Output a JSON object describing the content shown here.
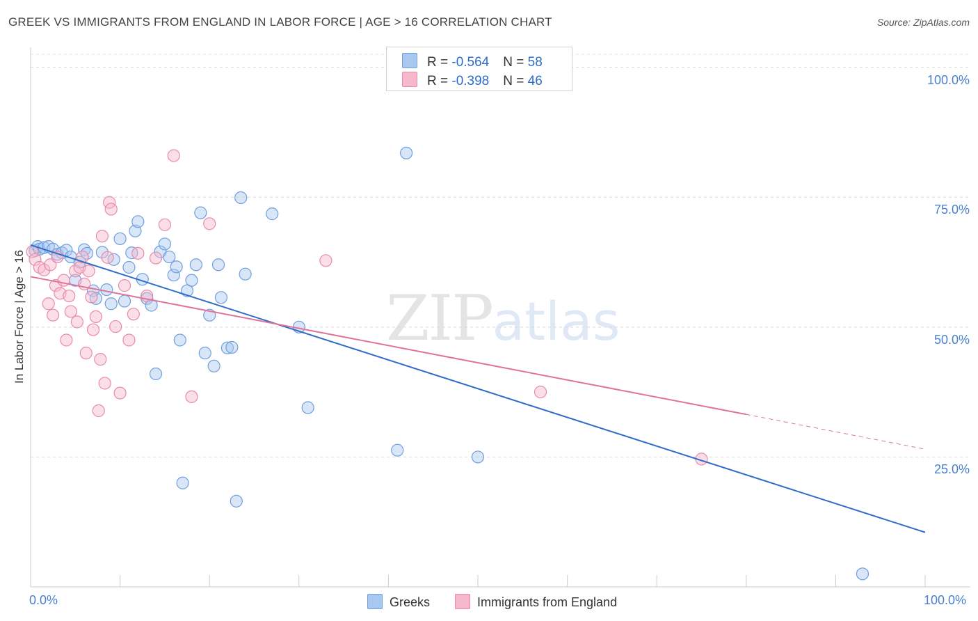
{
  "title": "GREEK VS IMMIGRANTS FROM ENGLAND IN LABOR FORCE | AGE > 16 CORRELATION CHART",
  "source": "Source: ZipAtlas.com",
  "watermark": {
    "zip": "ZIP",
    "atlas": "atlas"
  },
  "legend": {
    "r_label": "R = ",
    "n_label": "N = ",
    "series": [
      {
        "r": "-0.564",
        "n": "58",
        "color": "#a9c8f0",
        "border": "#6f9fdc"
      },
      {
        "r": "-0.398",
        "n": "46",
        "color": "#f7b8cc",
        "border": "#e98aa9"
      }
    ]
  },
  "bottom_legend": [
    "Greeks",
    "Immigrants from England"
  ],
  "chart_data": {
    "type": "scatter",
    "title": "GREEK VS IMMIGRANTS FROM ENGLAND IN LABOR FORCE | AGE > 16 CORRELATION CHART",
    "xlabel": "",
    "ylabel": "In Labor Force | Age > 16",
    "xlim": [
      0,
      100
    ],
    "ylim": [
      0,
      102.5
    ],
    "x_tick_labels": [
      "0.0%",
      "100.0%"
    ],
    "y_ticks": [
      25,
      50,
      75,
      100
    ],
    "y_tick_labels": [
      "25.0%",
      "50.0%",
      "75.0%",
      "100.0%"
    ],
    "grid": "horizontal dashed",
    "series": [
      {
        "name": "Greeks",
        "color": "#6f9fdc",
        "fill": "#a9c8f0",
        "points": [
          [
            0.5,
            64.7
          ],
          [
            0.8,
            65.5
          ],
          [
            1.0,
            65.0
          ],
          [
            1.5,
            65.3
          ],
          [
            2.0,
            65.5
          ],
          [
            2.5,
            65.0
          ],
          [
            3.0,
            64.0
          ],
          [
            3.5,
            64.3
          ],
          [
            4.0,
            64.8
          ],
          [
            4.5,
            63.5
          ],
          [
            5.0,
            59.0
          ],
          [
            5.5,
            62.5
          ],
          [
            6.0,
            64.9
          ],
          [
            6.3,
            64.2
          ],
          [
            7.0,
            57.0
          ],
          [
            7.3,
            55.5
          ],
          [
            8.0,
            64.4
          ],
          [
            8.5,
            57.2
          ],
          [
            9.0,
            54.5
          ],
          [
            9.3,
            63.0
          ],
          [
            10.0,
            67.0
          ],
          [
            10.5,
            55.0
          ],
          [
            11.0,
            61.5
          ],
          [
            11.3,
            64.3
          ],
          [
            11.7,
            68.5
          ],
          [
            12.0,
            70.3
          ],
          [
            12.5,
            59.2
          ],
          [
            13.0,
            55.5
          ],
          [
            13.5,
            54.2
          ],
          [
            14.0,
            41.0
          ],
          [
            14.5,
            64.5
          ],
          [
            15.0,
            66.0
          ],
          [
            15.5,
            63.5
          ],
          [
            16.0,
            60.0
          ],
          [
            16.3,
            61.6
          ],
          [
            16.7,
            47.5
          ],
          [
            17.0,
            20.0
          ],
          [
            17.5,
            57.0
          ],
          [
            18.0,
            59.0
          ],
          [
            18.5,
            62.0
          ],
          [
            19.0,
            72.0
          ],
          [
            19.5,
            45.0
          ],
          [
            20.0,
            52.3
          ],
          [
            20.5,
            42.5
          ],
          [
            21.0,
            62.0
          ],
          [
            21.3,
            55.7
          ],
          [
            22.0,
            46.0
          ],
          [
            22.5,
            46.1
          ],
          [
            23.0,
            16.5
          ],
          [
            23.5,
            74.9
          ],
          [
            24.0,
            60.2
          ],
          [
            27.0,
            71.8
          ],
          [
            30.0,
            50.0
          ],
          [
            31.0,
            34.5
          ],
          [
            41.0,
            26.3
          ],
          [
            42.0,
            83.5
          ],
          [
            50.0,
            25.0
          ],
          [
            93.0,
            2.5
          ]
        ],
        "trend": {
          "x": [
            0,
            100
          ],
          "y": [
            65.8,
            10.5
          ]
        }
      },
      {
        "name": "Immigrants from England",
        "color": "#e98aa9",
        "fill": "#f7b8cc",
        "points": [
          [
            0.2,
            64.5
          ],
          [
            0.5,
            63.0
          ],
          [
            1.0,
            61.5
          ],
          [
            1.5,
            61.0
          ],
          [
            2.0,
            54.5
          ],
          [
            2.2,
            62.0
          ],
          [
            2.5,
            52.3
          ],
          [
            2.8,
            58.0
          ],
          [
            3.0,
            63.5
          ],
          [
            3.3,
            56.5
          ],
          [
            3.7,
            59.0
          ],
          [
            4.0,
            47.5
          ],
          [
            4.3,
            56.0
          ],
          [
            4.5,
            53.0
          ],
          [
            5.0,
            60.8
          ],
          [
            5.2,
            51.0
          ],
          [
            5.5,
            61.5
          ],
          [
            5.8,
            63.5
          ],
          [
            6.0,
            58.3
          ],
          [
            6.2,
            45.0
          ],
          [
            6.5,
            60.8
          ],
          [
            6.8,
            55.8
          ],
          [
            7.0,
            49.5
          ],
          [
            7.3,
            52.0
          ],
          [
            7.6,
            33.9
          ],
          [
            7.8,
            43.8
          ],
          [
            8.0,
            67.5
          ],
          [
            8.3,
            39.2
          ],
          [
            8.6,
            63.4
          ],
          [
            8.8,
            74.0
          ],
          [
            9.0,
            72.7
          ],
          [
            9.5,
            50.1
          ],
          [
            10.0,
            37.3
          ],
          [
            10.5,
            58.0
          ],
          [
            11.0,
            47.5
          ],
          [
            11.5,
            52.5
          ],
          [
            12.0,
            64.2
          ],
          [
            13.0,
            56.0
          ],
          [
            14.0,
            63.3
          ],
          [
            15.0,
            69.7
          ],
          [
            16.0,
            83.0
          ],
          [
            18.0,
            36.6
          ],
          [
            20.0,
            69.9
          ],
          [
            33.0,
            62.8
          ],
          [
            57.0,
            37.5
          ],
          [
            75.0,
            24.6
          ]
        ],
        "trend": {
          "x": [
            0,
            80
          ],
          "y": [
            59.7,
            33.2
          ]
        },
        "trend_extension": {
          "x": [
            80,
            100
          ],
          "y": [
            33.2,
            26.5
          ]
        }
      }
    ]
  }
}
